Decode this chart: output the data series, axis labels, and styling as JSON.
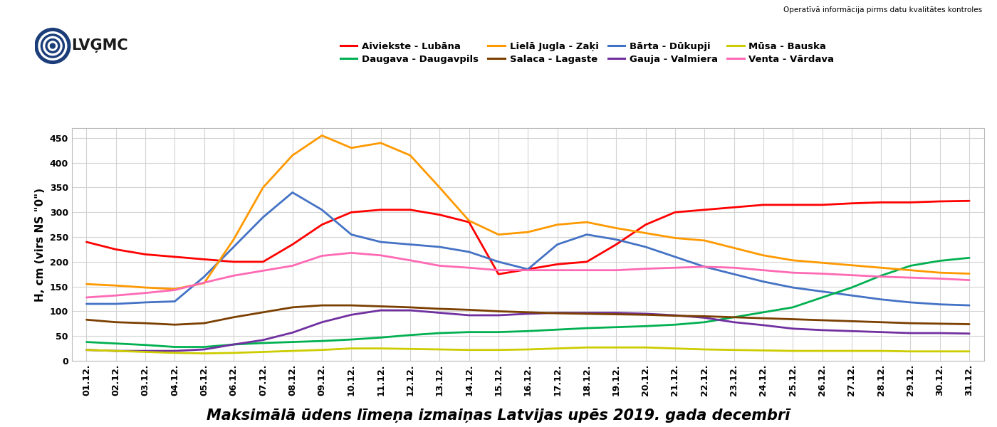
{
  "title": "Maksimālā ūdens līmeņa izmaiņas Latvijas upēs 2019. gada decembrī",
  "ylabel": "H, cm (virs NS \"0\")",
  "subtitle": "Operatīvā informācija pirms datu kvalitātes kontroles",
  "xlabels": [
    "01.12.",
    "02.12.",
    "03.12.",
    "04.12.",
    "05.12.",
    "06.12.",
    "07.12.",
    "08.12.",
    "09.12.",
    "10.12.",
    "11.12.",
    "12.12.",
    "13.12.",
    "14.12.",
    "15.12.",
    "16.12.",
    "17.12.",
    "18.12.",
    "19.12.",
    "20.12.",
    "21.12.",
    "22.12.",
    "23.12.",
    "24.12.",
    "25.12.",
    "26.12.",
    "27.12.",
    "28.12.",
    "29.12.",
    "30.12.",
    "31.12."
  ],
  "ylim": [
    0,
    470
  ],
  "yticks": [
    0,
    50,
    100,
    150,
    200,
    250,
    300,
    350,
    400,
    450
  ],
  "legend_order": [
    [
      "Aiviekste - Lubāna",
      "Daugava - Daugavpils",
      "Lielā Jugla - Zaķi",
      "Salaca - Lagaste"
    ],
    [
      "Bārta - Dūkupji",
      "Gauja - Valmiera",
      "Mūsa - Bauska",
      "Venta - Vārdava"
    ]
  ],
  "series": {
    "Aiviekste - Lubāna": {
      "color": "#ff0000",
      "data": [
        240,
        225,
        215,
        210,
        205,
        200,
        200,
        235,
        275,
        300,
        305,
        305,
        295,
        280,
        175,
        185,
        195,
        200,
        235,
        275,
        300,
        305,
        310,
        315,
        315,
        315,
        318,
        320,
        320,
        322,
        323
      ]
    },
    "Bārta - Dūkupji": {
      "color": "#4472c4",
      "data": [
        115,
        115,
        118,
        120,
        170,
        230,
        290,
        340,
        305,
        255,
        240,
        235,
        230,
        220,
        200,
        185,
        235,
        255,
        245,
        230,
        210,
        190,
        175,
        160,
        148,
        140,
        132,
        124,
        118,
        114,
        112
      ]
    },
    "Daugava - Daugavpils": {
      "color": "#00b050",
      "data": [
        38,
        35,
        32,
        28,
        28,
        33,
        36,
        38,
        40,
        43,
        47,
        52,
        56,
        58,
        58,
        60,
        63,
        66,
        68,
        70,
        73,
        78,
        88,
        98,
        108,
        128,
        148,
        172,
        192,
        202,
        208
      ]
    },
    "Gauja - Valmiera": {
      "color": "#7030a0",
      "data": [
        22,
        20,
        20,
        20,
        23,
        33,
        42,
        57,
        78,
        93,
        102,
        102,
        97,
        92,
        92,
        95,
        97,
        97,
        97,
        95,
        92,
        87,
        78,
        72,
        65,
        62,
        60,
        58,
        56,
        56,
        55
      ]
    },
    "Lielā Jugla - Zaķi": {
      "color": "#ff9900",
      "data": [
        155,
        152,
        148,
        145,
        157,
        245,
        350,
        415,
        455,
        430,
        440,
        415,
        350,
        283,
        255,
        260,
        275,
        280,
        268,
        258,
        248,
        243,
        228,
        213,
        203,
        198,
        193,
        188,
        183,
        178,
        176
      ]
    },
    "Mūsa - Bauska": {
      "color": "#cccc00",
      "data": [
        22,
        20,
        18,
        16,
        15,
        16,
        18,
        20,
        22,
        25,
        25,
        24,
        23,
        22,
        22,
        23,
        25,
        27,
        27,
        27,
        25,
        23,
        22,
        21,
        20,
        20,
        20,
        20,
        19,
        19,
        19
      ]
    },
    "Salaca - Lagaste": {
      "color": "#7b3f00",
      "data": [
        83,
        78,
        76,
        73,
        76,
        88,
        98,
        108,
        112,
        112,
        110,
        108,
        105,
        103,
        100,
        98,
        96,
        95,
        94,
        93,
        91,
        90,
        88,
        86,
        84,
        82,
        80,
        78,
        76,
        75,
        74
      ]
    },
    "Venta - Vārdava": {
      "color": "#ff69b4",
      "data": [
        128,
        132,
        137,
        143,
        158,
        172,
        182,
        192,
        212,
        218,
        213,
        203,
        192,
        188,
        183,
        183,
        183,
        183,
        183,
        186,
        188,
        190,
        188,
        183,
        178,
        176,
        173,
        170,
        168,
        166,
        163
      ]
    }
  },
  "background_color": "#ffffff",
  "grid_color": "#d3d3d3",
  "title_fontsize": 15,
  "axis_label_fontsize": 11,
  "tick_fontsize": 9,
  "legend_fontsize": 9.5
}
